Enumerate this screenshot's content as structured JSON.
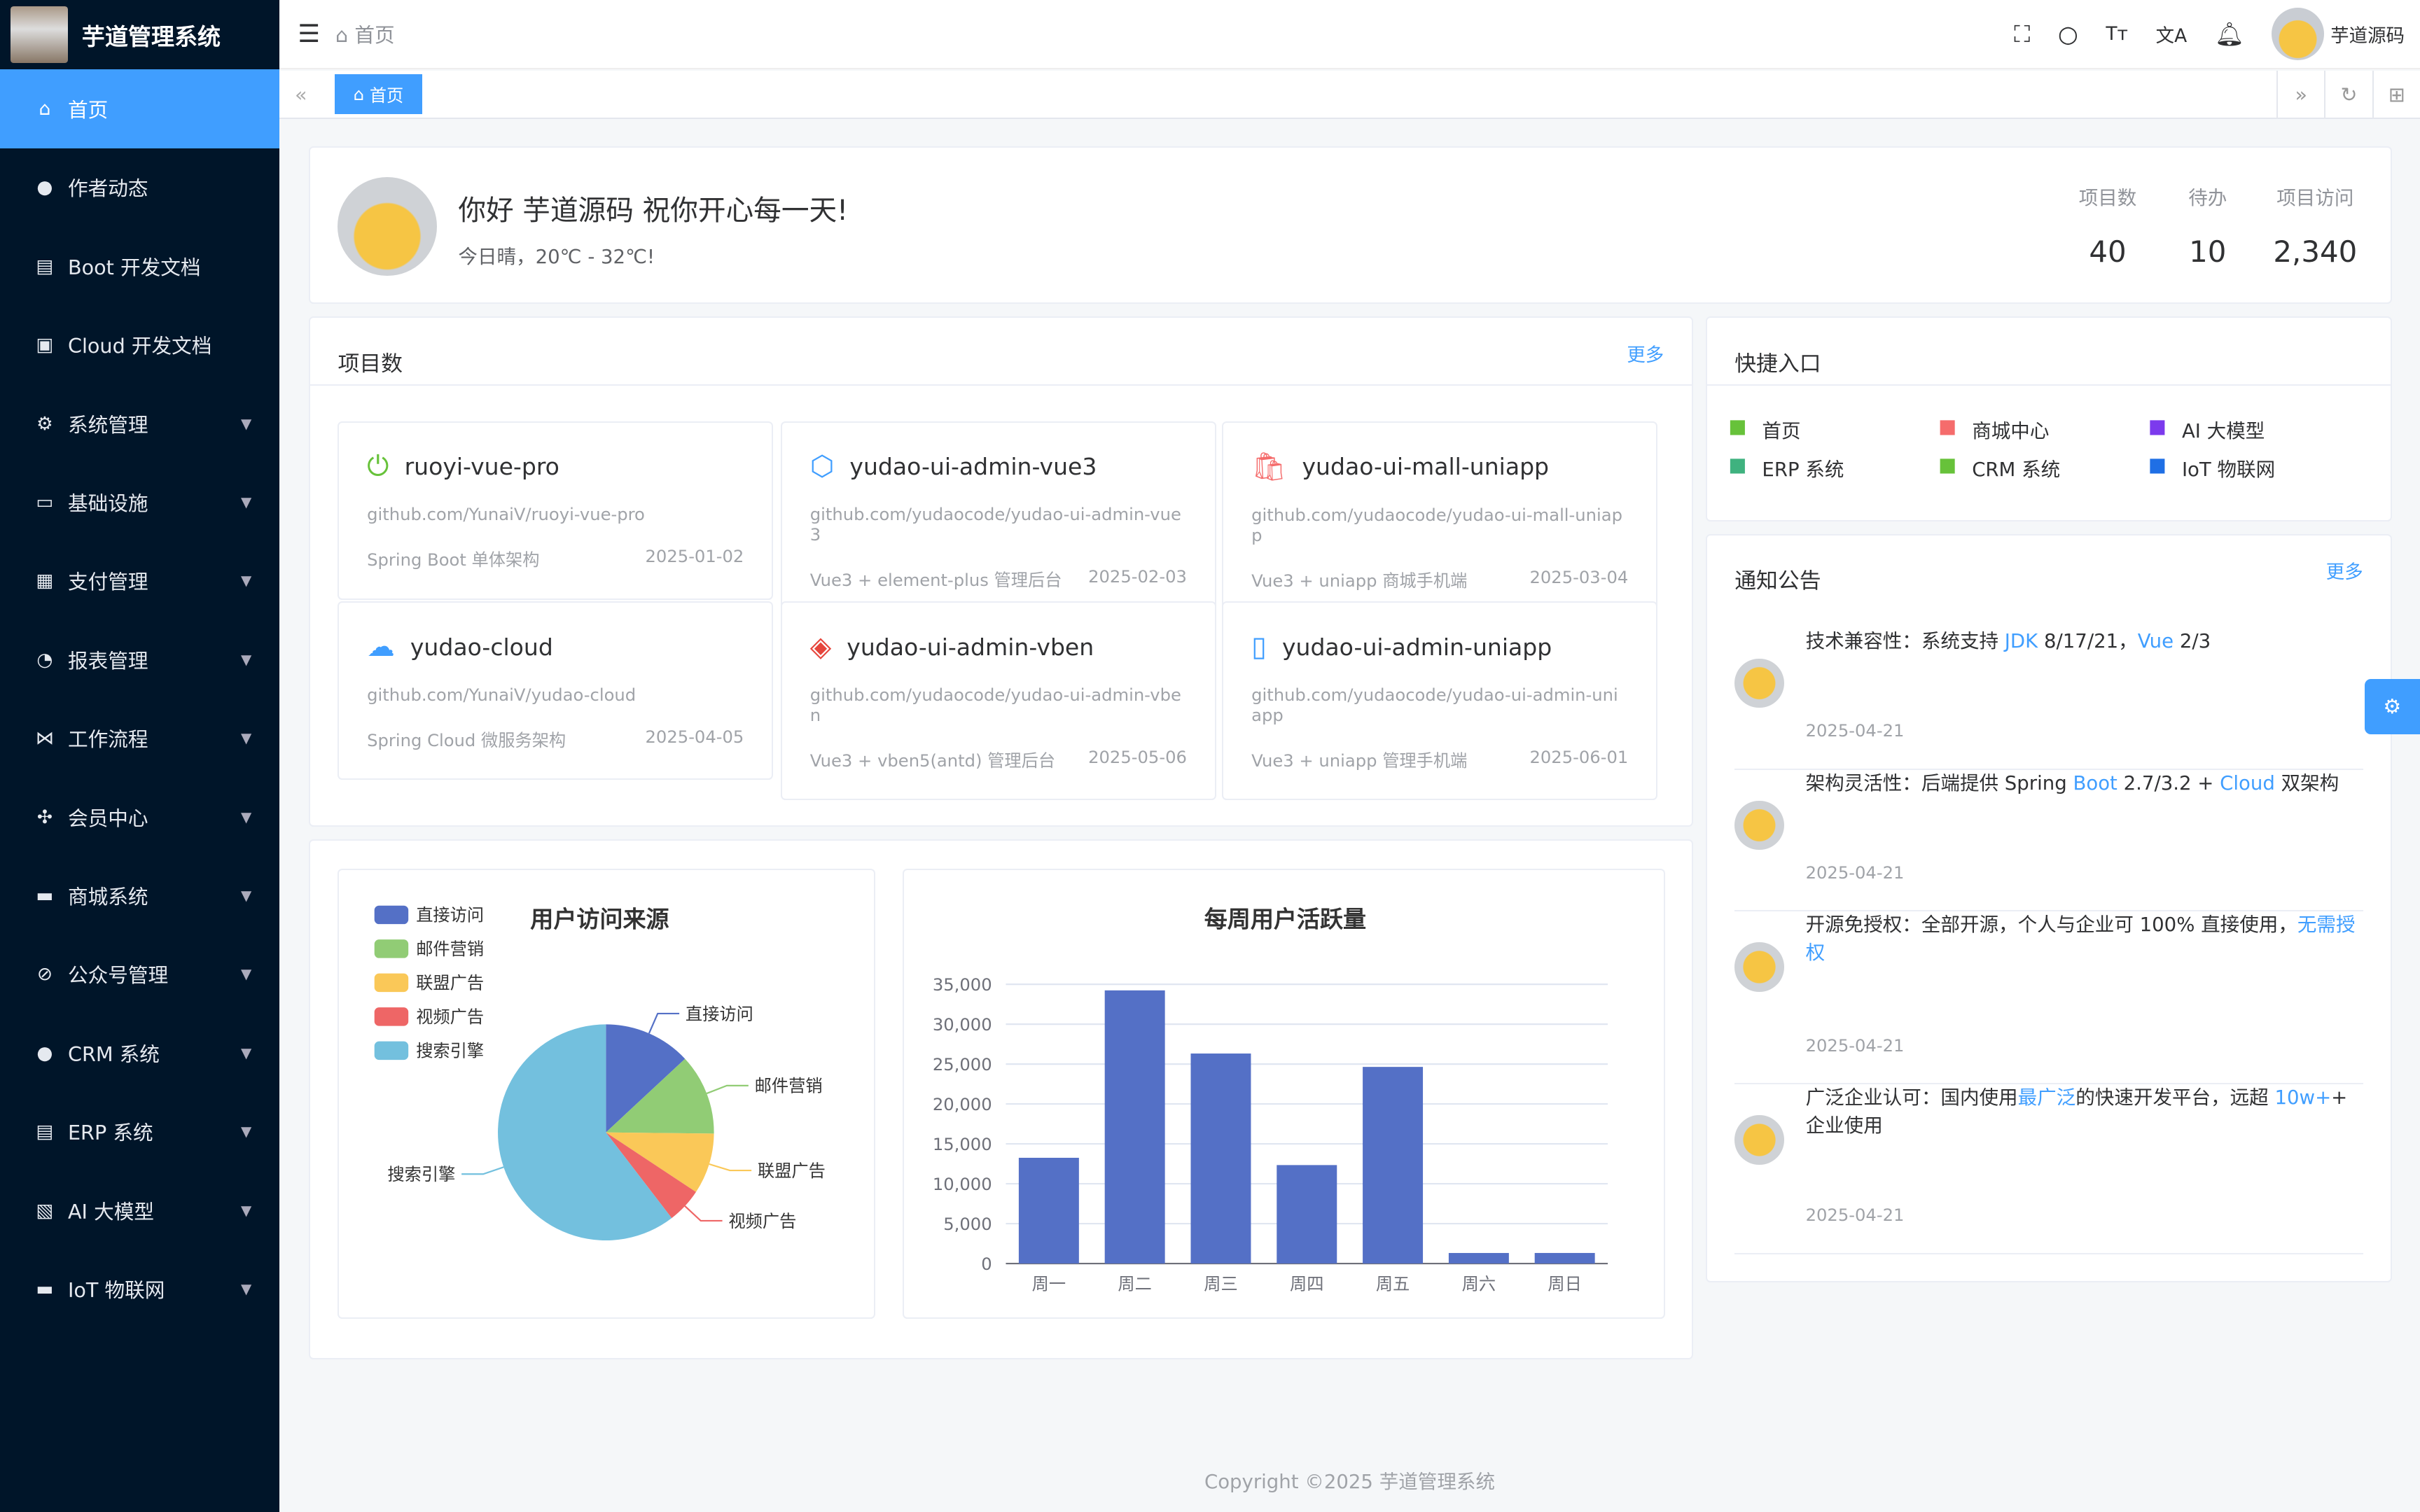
{
  "app": {
    "title": "芋道管理系统",
    "user": "芋道源码"
  },
  "sidebar": {
    "items": [
      {
        "label": "首页",
        "icon": "home-icon",
        "active": true
      },
      {
        "label": "作者动态",
        "icon": "user-icon"
      },
      {
        "label": "Boot 开发文档",
        "icon": "document-icon"
      },
      {
        "label": "Cloud 开发文档",
        "icon": "document-copy-icon"
      },
      {
        "label": "系统管理",
        "icon": "gear-icon",
        "sub": true
      },
      {
        "label": "基础设施",
        "icon": "monitor-icon",
        "sub": true
      },
      {
        "label": "支付管理",
        "icon": "wallet-icon",
        "sub": true
      },
      {
        "label": "报表管理",
        "icon": "pie-icon",
        "sub": true
      },
      {
        "label": "工作流程",
        "icon": "flow-icon",
        "sub": true
      },
      {
        "label": "会员中心",
        "icon": "member-icon",
        "sub": true
      },
      {
        "label": "商城系统",
        "icon": "shop-icon",
        "sub": true
      },
      {
        "label": "公众号管理",
        "icon": "compass-icon",
        "sub": true
      },
      {
        "label": "CRM 系统",
        "icon": "user-icon",
        "sub": true
      },
      {
        "label": "ERP 系统",
        "icon": "store-icon",
        "sub": true
      },
      {
        "label": "AI 大模型",
        "icon": "ai-icon",
        "sub": true
      },
      {
        "label": "IoT 物联网",
        "icon": "iot-icon",
        "sub": true
      }
    ]
  },
  "header": {
    "breadcrumb": "首页",
    "tab": "首页"
  },
  "welcome": {
    "greeting": "你好 芋道源码 祝你开心每一天!",
    "weather": "今日晴，20℃ - 32℃!",
    "stats": [
      {
        "label": "项目数",
        "value": "40"
      },
      {
        "label": "待办",
        "value": "10"
      },
      {
        "label": "项目访问",
        "value": "2,340"
      }
    ]
  },
  "projects": {
    "title": "项目数",
    "more": "更多",
    "items": [
      {
        "name": "ruoyi-vue-pro",
        "url": "github.com/YunaiV/ruoyi-vue-pro",
        "desc": "Spring Boot 单体架构",
        "date": "2025-01-02",
        "color": "#67c23a"
      },
      {
        "name": "yudao-ui-admin-vue3",
        "url": "github.com/yudaocode/yudao-ui-admin-vue3",
        "desc": "Vue3 + element-plus 管理后台",
        "date": "2025-02-03",
        "color": "#409eff"
      },
      {
        "name": "yudao-ui-mall-uniapp",
        "url": "github.com/yudaocode/yudao-ui-mall-uniapp",
        "desc": "Vue3 + uniapp 商城手机端",
        "date": "2025-03-04",
        "color": "#f56c6c"
      },
      {
        "name": "yudao-cloud",
        "url": "github.com/YunaiV/yudao-cloud",
        "desc": "Spring Cloud 微服务架构",
        "date": "2025-04-05",
        "color": "#409eff"
      },
      {
        "name": "yudao-ui-admin-vben",
        "url": "github.com/yudaocode/yudao-ui-admin-vben",
        "desc": "Vue3 + vben5(antd) 管理后台",
        "date": "2025-05-06",
        "color": "#e6453c"
      },
      {
        "name": "yudao-ui-admin-uniapp",
        "url": "github.com/yudaocode/yudao-ui-admin-uniapp",
        "desc": "Vue3 + uniapp 管理手机端",
        "date": "2025-06-01",
        "color": "#409eff"
      }
    ]
  },
  "shortcuts": {
    "title": "快捷入口",
    "items": [
      {
        "label": "首页",
        "color": "#67c23a"
      },
      {
        "label": "商城中心",
        "color": "#f56c6c"
      },
      {
        "label": "AI 大模型",
        "color": "#7c3aed"
      },
      {
        "label": "ERP 系统",
        "color": "#3fb27f"
      },
      {
        "label": "CRM 系统",
        "color": "#67c23a"
      },
      {
        "label": "IoT 物联网",
        "color": "#1f6fe5"
      }
    ]
  },
  "notices": {
    "title": "通知公告",
    "more": "更多",
    "items": [
      {
        "parts": [
          "技术兼容性：系统支持 ",
          "JDK",
          " 8/17/21，",
          "Vue",
          " 2/3"
        ],
        "date": "2025-04-21"
      },
      {
        "parts": [
          "架构灵活性：后端提供 Spring ",
          "Boot",
          " 2.7/3.2 + ",
          "Cloud",
          " 双架构"
        ],
        "date": "2025-04-21"
      },
      {
        "parts": [
          "开源免授权：全部开源，个人与企业可 100% 直接使用，",
          "无需授权",
          "",
          "",
          ""
        ],
        "date": "2025-04-21"
      },
      {
        "parts": [
          "广泛企业认可：国内使用",
          "最广泛",
          "的快速开发平台，远超 ",
          "10w+",
          "+ 企业使用"
        ],
        "date": "2025-04-21"
      }
    ]
  },
  "chart_data": [
    {
      "type": "pie",
      "title": "用户访问来源",
      "legend": "top-left",
      "categories": [
        "直接访问",
        "邮件营销",
        "联盟广告",
        "视频广告",
        "搜索引擎"
      ],
      "values": [
        335,
        310,
        234,
        135,
        1548
      ],
      "colors": [
        "#5470c6",
        "#91cc75",
        "#fac858",
        "#ee6666",
        "#73c0de"
      ]
    },
    {
      "type": "bar",
      "title": "每周用户活跃量",
      "categories": [
        "周一",
        "周二",
        "周三",
        "周四",
        "周五",
        "周六",
        "周日"
      ],
      "values": [
        13253,
        34235,
        26321,
        12340,
        24643,
        1322,
        1324
      ],
      "ylim": [
        0,
        35000
      ],
      "yticks": [
        "0",
        "5,000",
        "10,000",
        "15,000",
        "20,000",
        "25,000",
        "30,000",
        "35,000"
      ],
      "grid": true,
      "color": "#5470c6"
    }
  ],
  "footer": "Copyright ©2025 芋道管理系统"
}
